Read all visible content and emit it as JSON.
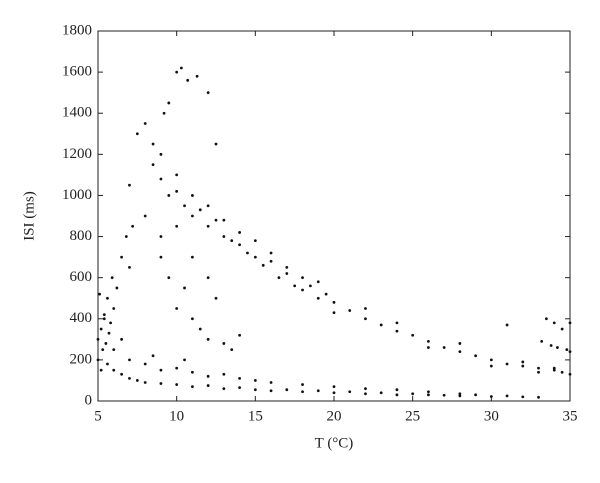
{
  "chart_data": {
    "type": "scatter",
    "xlabel": "T (°C)",
    "ylabel": "ISI (ms)",
    "xlim": [
      5,
      35
    ],
    "xticks": [
      5,
      10,
      15,
      20,
      25,
      30,
      35
    ],
    "ylim": [
      0,
      1800
    ],
    "yticks": [
      0,
      200,
      400,
      600,
      800,
      1000,
      1200,
      1400,
      1600,
      1800
    ],
    "color": "#111111",
    "x": [
      8.5,
      9,
      9.5,
      10,
      10.5,
      11,
      11.5,
      12,
      12.5,
      13,
      13.5,
      14,
      14.5,
      15,
      15.5,
      16,
      16.5,
      17,
      17.5,
      18,
      18.5,
      19,
      19.5,
      20,
      21,
      22,
      23,
      24,
      25,
      26,
      27,
      28,
      29,
      30,
      31,
      32,
      33,
      34,
      34.5,
      35,
      9,
      10,
      11,
      12,
      13,
      14,
      15,
      16,
      17,
      18,
      19,
      20,
      22,
      24,
      26,
      28,
      30,
      32,
      33,
      34,
      6,
      6.5,
      7,
      7.5,
      8,
      9,
      10,
      11,
      12,
      13,
      14,
      15,
      16,
      17,
      18,
      19,
      20,
      21,
      22,
      23,
      24,
      25,
      26,
      27,
      28,
      29,
      30,
      31,
      32,
      33,
      6,
      7,
      8,
      9,
      10,
      11,
      12,
      13,
      14,
      15,
      16,
      18,
      20,
      22,
      24,
      26,
      28,
      6.5,
      8.5,
      10.5,
      5,
      5.2,
      5.4,
      5.6,
      5.8,
      5,
      5.3,
      5.5,
      5.7,
      6,
      5.1,
      5.4,
      5.9,
      6.2,
      6.5,
      5.2,
      5.6,
      6.8,
      7,
      7.2,
      7,
      7.5,
      8,
      8,
      8.5,
      9,
      9.5,
      10,
      10.5,
      11,
      11.5,
      12,
      12.5,
      13,
      13.5,
      14,
      9,
      10,
      11,
      12,
      9.5,
      10,
      10.3,
      10.7,
      11.3,
      12,
      9.2,
      12.5,
      31,
      33.5,
      34,
      34.5,
      35,
      34.8,
      33.2,
      33.8,
      34.2,
      35
    ],
    "values": [
      1150,
      1080,
      1000,
      1020,
      950,
      900,
      930,
      850,
      880,
      800,
      780,
      760,
      720,
      700,
      660,
      680,
      600,
      620,
      560,
      540,
      560,
      500,
      520,
      480,
      440,
      400,
      370,
      340,
      320,
      290,
      260,
      240,
      220,
      200,
      180,
      170,
      160,
      150,
      140,
      130,
      1200,
      1100,
      1000,
      950,
      880,
      820,
      780,
      720,
      650,
      600,
      580,
      430,
      450,
      380,
      260,
      280,
      170,
      190,
      140,
      160,
      150,
      130,
      110,
      100,
      90,
      85,
      80,
      70,
      75,
      60,
      65,
      55,
      50,
      55,
      45,
      50,
      40,
      45,
      35,
      40,
      30,
      35,
      30,
      28,
      25,
      30,
      22,
      25,
      20,
      18,
      250,
      200,
      180,
      150,
      160,
      140,
      120,
      130,
      110,
      100,
      90,
      80,
      70,
      60,
      55,
      45,
      35,
      300,
      220,
      200,
      300,
      350,
      420,
      500,
      380,
      200,
      250,
      280,
      330,
      450,
      520,
      400,
      600,
      550,
      700,
      150,
      180,
      800,
      650,
      850,
      1050,
      1300,
      1350,
      900,
      1250,
      700,
      600,
      450,
      550,
      400,
      350,
      300,
      500,
      280,
      250,
      320,
      800,
      850,
      700,
      600,
      1450,
      1600,
      1620,
      1560,
      1580,
      1500,
      1400,
      1250,
      370,
      400,
      380,
      350,
      380,
      250,
      290,
      270,
      260,
      240
    ]
  }
}
